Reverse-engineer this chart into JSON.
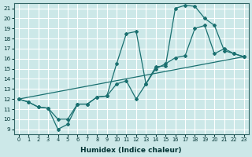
{
  "xlabel": "Humidex (Indice chaleur)",
  "bg_color": "#cce8e8",
  "grid_color": "#ffffff",
  "line_color": "#1a7070",
  "xlim": [
    -0.5,
    23.5
  ],
  "ylim": [
    8.5,
    21.5
  ],
  "xticks": [
    0,
    1,
    2,
    3,
    4,
    5,
    6,
    7,
    8,
    9,
    10,
    11,
    12,
    13,
    14,
    15,
    16,
    17,
    18,
    19,
    20,
    21,
    22,
    23
  ],
  "yticks": [
    9,
    10,
    11,
    12,
    13,
    14,
    15,
    16,
    17,
    18,
    19,
    20,
    21
  ],
  "line1_x": [
    0,
    1,
    2,
    3,
    4,
    5,
    6,
    7,
    8,
    9,
    10,
    11,
    12,
    13,
    14,
    15,
    16,
    17,
    18,
    19,
    20,
    21,
    22,
    23
  ],
  "line1_y": [
    12,
    11.7,
    11.2,
    11.1,
    9.0,
    9.5,
    11.5,
    11.5,
    12.2,
    12.3,
    15.5,
    18.5,
    18.7,
    13.5,
    15.2,
    15.3,
    21.0,
    21.3,
    21.2,
    20.0,
    19.3,
    16.8,
    16.5,
    16.2
  ],
  "line2_x": [
    0,
    1,
    2,
    3,
    4,
    5,
    6,
    7,
    8,
    9,
    10,
    11,
    12,
    13,
    14,
    15,
    16,
    17,
    18,
    19,
    20,
    21,
    22,
    23
  ],
  "line2_y": [
    12,
    11.7,
    11.2,
    11.1,
    10.0,
    10.0,
    11.5,
    11.5,
    12.2,
    12.3,
    13.5,
    13.8,
    12.0,
    13.5,
    15.0,
    15.5,
    16.1,
    16.3,
    19.0,
    19.3,
    16.5,
    17.0,
    16.5,
    16.2
  ],
  "line3_x": [
    0,
    23
  ],
  "line3_y": [
    12,
    16.2
  ]
}
